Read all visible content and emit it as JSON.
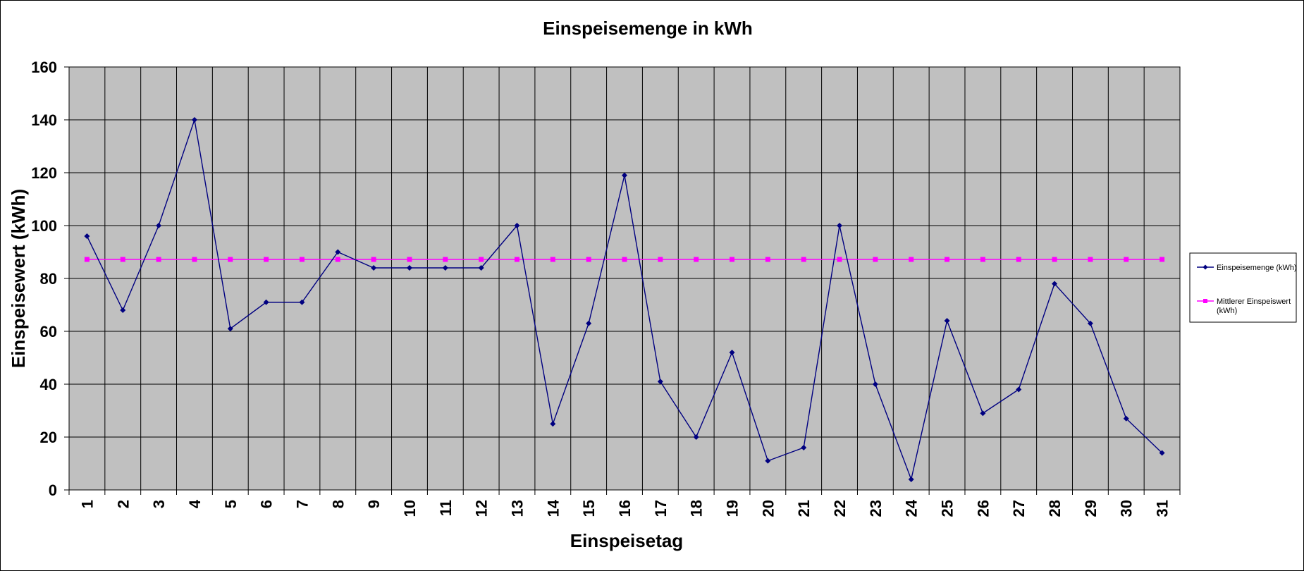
{
  "chart_data": {
    "type": "line",
    "title": "Einspeisemenge in kWh",
    "xlabel": "Einspeisetag",
    "ylabel": "Einspeisewert  (kWh)",
    "categories": [
      "1",
      "2",
      "3",
      "4",
      "5",
      "6",
      "7",
      "8",
      "9",
      "10",
      "11",
      "12",
      "13",
      "14",
      "15",
      "16",
      "17",
      "18",
      "19",
      "20",
      "21",
      "22",
      "23",
      "24",
      "25",
      "26",
      "27",
      "28",
      "29",
      "30",
      "31"
    ],
    "yticks": [
      "0",
      "20",
      "40",
      "60",
      "80",
      "100",
      "120",
      "140",
      "160"
    ],
    "ylim": [
      0,
      160
    ],
    "grid": true,
    "legend_position": "right",
    "plot_background": "#c0c0c0",
    "series": [
      {
        "name": "Einspeisemenge (kWh)",
        "color": "#000080",
        "marker": "diamond",
        "values": [
          96,
          68,
          100,
          140,
          61,
          71,
          71,
          90,
          84,
          84,
          84,
          84,
          100,
          25,
          63,
          119,
          41,
          20,
          52,
          11,
          16,
          100,
          40,
          4,
          64,
          29,
          38,
          78,
          63,
          27,
          14
        ]
      },
      {
        "name": "Mittlerer Einspeiswert (kWh)",
        "color": "#ff00ff",
        "marker": "square",
        "values": [
          87.2,
          87.2,
          87.2,
          87.2,
          87.2,
          87.2,
          87.2,
          87.2,
          87.2,
          87.2,
          87.2,
          87.2,
          87.2,
          87.2,
          87.2,
          87.2,
          87.2,
          87.2,
          87.2,
          87.2,
          87.2,
          87.2,
          87.2,
          87.2,
          87.2,
          87.2,
          87.2,
          87.2,
          87.2,
          87.2,
          87.2
        ]
      }
    ]
  }
}
